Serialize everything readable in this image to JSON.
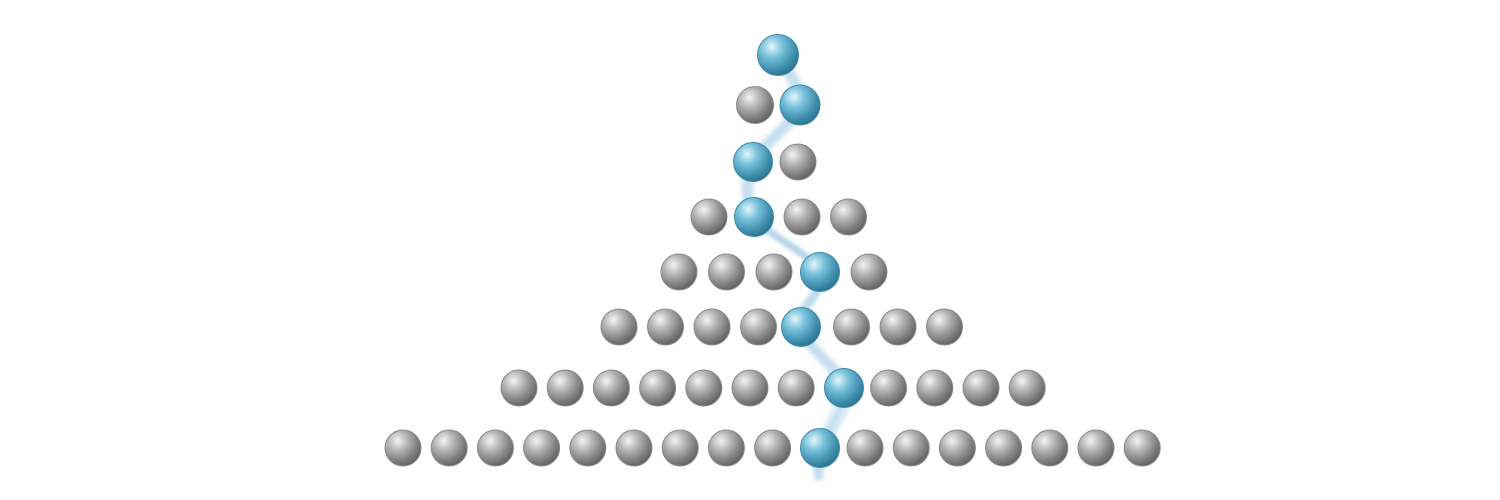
{
  "diagram": {
    "rows": [
      {
        "count": 1,
        "highlighted": 0
      },
      {
        "count": 2,
        "highlighted": 1
      },
      {
        "count": 2,
        "highlighted": 0
      },
      {
        "count": 4,
        "highlighted": 1
      },
      {
        "count": 5,
        "highlighted": 3
      },
      {
        "count": 8,
        "highlighted": 4
      },
      {
        "count": 12,
        "highlighted": 7
      },
      {
        "count": 17,
        "highlighted": 9
      }
    ],
    "colors": {
      "background": "#ffffff",
      "neutral_sphere": "#9a9a9a",
      "highlight_sphere": "#5fb0d0",
      "path_trail": "#a9cfe6"
    }
  }
}
